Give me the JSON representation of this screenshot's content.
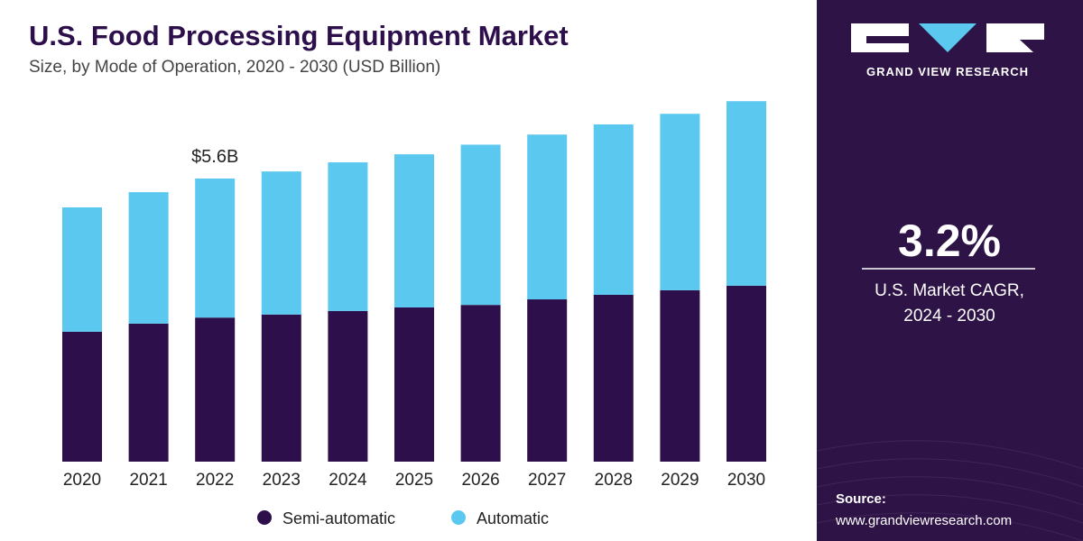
{
  "chart_data": {
    "type": "stacked-bar",
    "title": "U.S. Food Processing Equipment Market",
    "subtitle": "Size, by Mode of Operation, 2020 - 2030 (USD Billion)",
    "categories": [
      "2020",
      "2021",
      "2022",
      "2023",
      "2024",
      "2025",
      "2026",
      "2027",
      "2028",
      "2029",
      "2030"
    ],
    "series": [
      {
        "name": "Semi-automatic",
        "color": "#2d0f4b",
        "values": [
          2.57,
          2.73,
          2.85,
          2.91,
          2.98,
          3.05,
          3.1,
          3.21,
          3.3,
          3.39,
          3.48
        ]
      },
      {
        "name": "Automatic",
        "color": "#5bc8f0",
        "values": [
          2.46,
          2.6,
          2.75,
          2.83,
          2.94,
          3.03,
          3.17,
          3.26,
          3.37,
          3.49,
          3.65
        ]
      }
    ],
    "annotation": {
      "text": "$5.6B",
      "value": 5.6,
      "category_index": 2
    },
    "legend": "bottom"
  },
  "sidebar": {
    "brand": "GRAND VIEW RESEARCH",
    "cagr": "3.2%",
    "cagr_label_1": "U.S. Market CAGR,",
    "cagr_label_2": "2024 - 2030",
    "source_label": "Source:",
    "source_url": "www.grandviewresearch.com"
  }
}
